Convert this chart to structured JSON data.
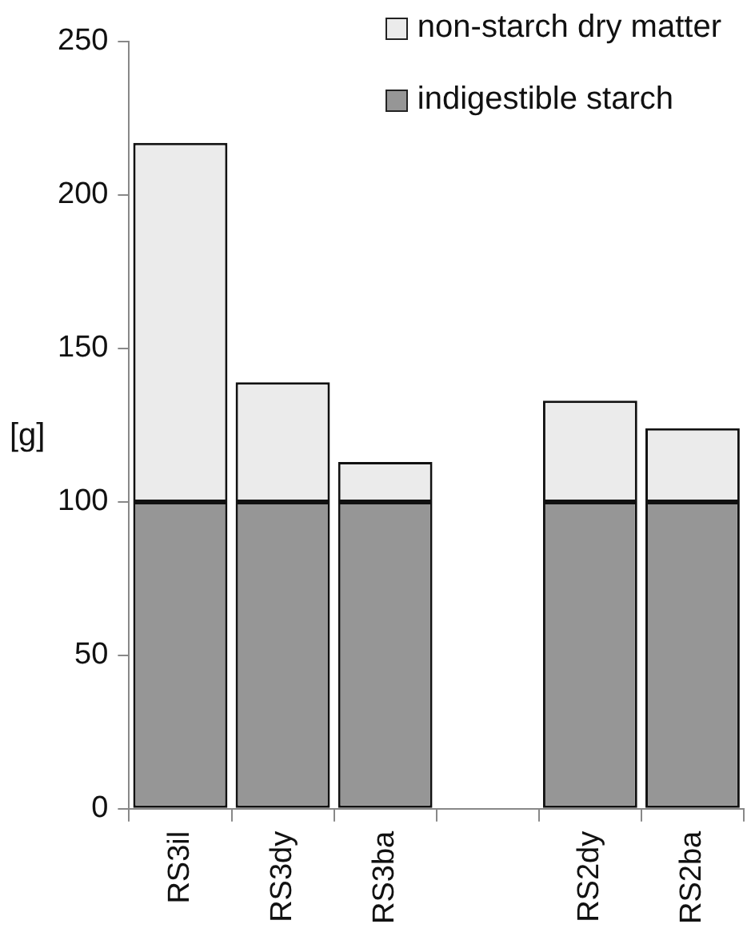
{
  "chart_data": {
    "type": "bar",
    "stacked": true,
    "ylabel": "[g]",
    "categories": [
      "RS3il",
      "RS3dy",
      "RS3ba",
      null,
      "RS2dy",
      "RS2ba"
    ],
    "series": [
      {
        "name": "indigestible starch",
        "color": "#969696",
        "values": [
          100,
          100,
          100,
          null,
          100,
          100
        ]
      },
      {
        "name": "non-starch dry matter",
        "color": "#ebebeb",
        "values": [
          117,
          39,
          13,
          null,
          33,
          24
        ]
      }
    ],
    "ylim": [
      0,
      250
    ],
    "yticks": [
      0,
      50,
      100,
      150,
      200,
      250
    ],
    "grid": false,
    "legend": "top right"
  }
}
